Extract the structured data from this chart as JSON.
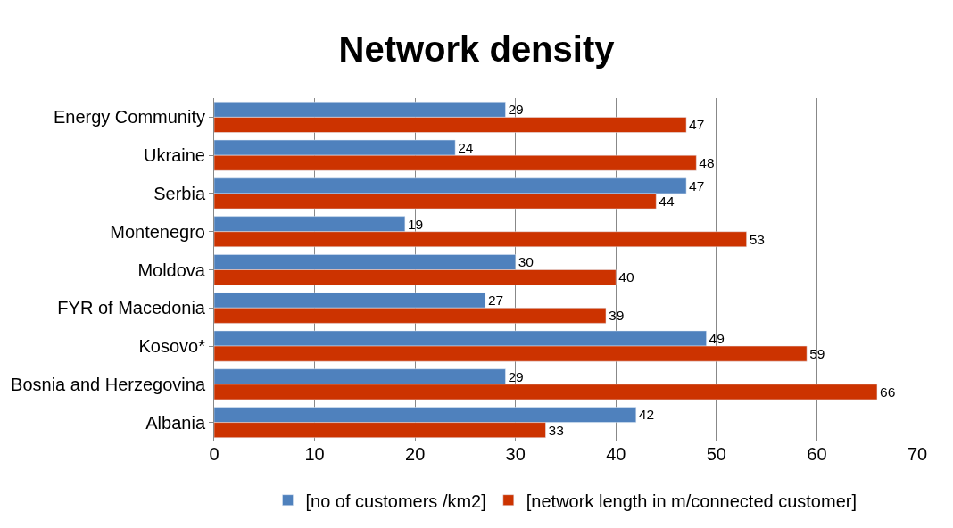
{
  "chart_data": {
    "type": "bar",
    "orientation": "horizontal",
    "title": "Network density",
    "categories": [
      "Energy Community",
      "Ukraine",
      "Serbia",
      "Montenegro",
      "Moldova",
      "FYR of Macedonia",
      "Kosovo*",
      "Bosnia and Herzegovina",
      "Albania"
    ],
    "series": [
      {
        "name": "[no of customers /km2]",
        "color": "#4f81bd",
        "values": [
          29,
          24,
          47,
          19,
          30,
          27,
          49,
          29,
          42
        ]
      },
      {
        "name": "[network length in m/connected customer]",
        "color": "#cc3300",
        "values": [
          47,
          48,
          44,
          53,
          40,
          39,
          59,
          66,
          33
        ]
      }
    ],
    "xlim": [
      0,
      70
    ],
    "xticks": [
      0,
      10,
      20,
      30,
      40,
      50,
      60,
      70
    ],
    "grid": "x",
    "legend": "bottom",
    "data_labels": true
  }
}
